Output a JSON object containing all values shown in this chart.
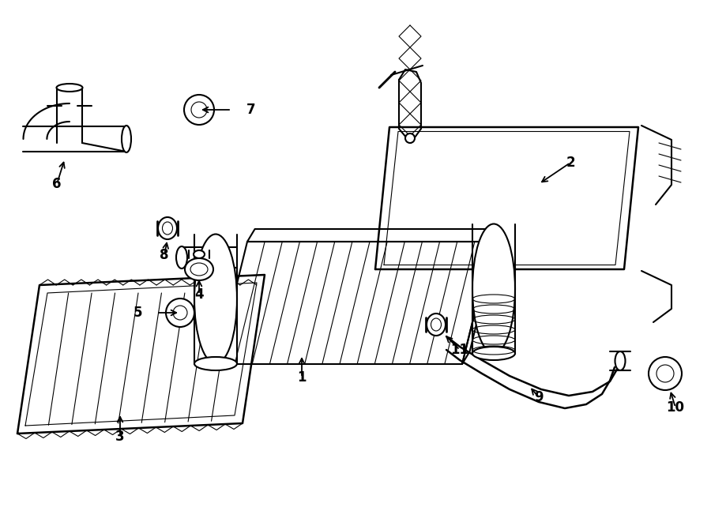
{
  "bg_color": "#ffffff",
  "line_color": "#000000",
  "line_width": 1.5,
  "thin_line": 0.8,
  "figsize": [
    9.0,
    6.61
  ],
  "dpi": 100
}
